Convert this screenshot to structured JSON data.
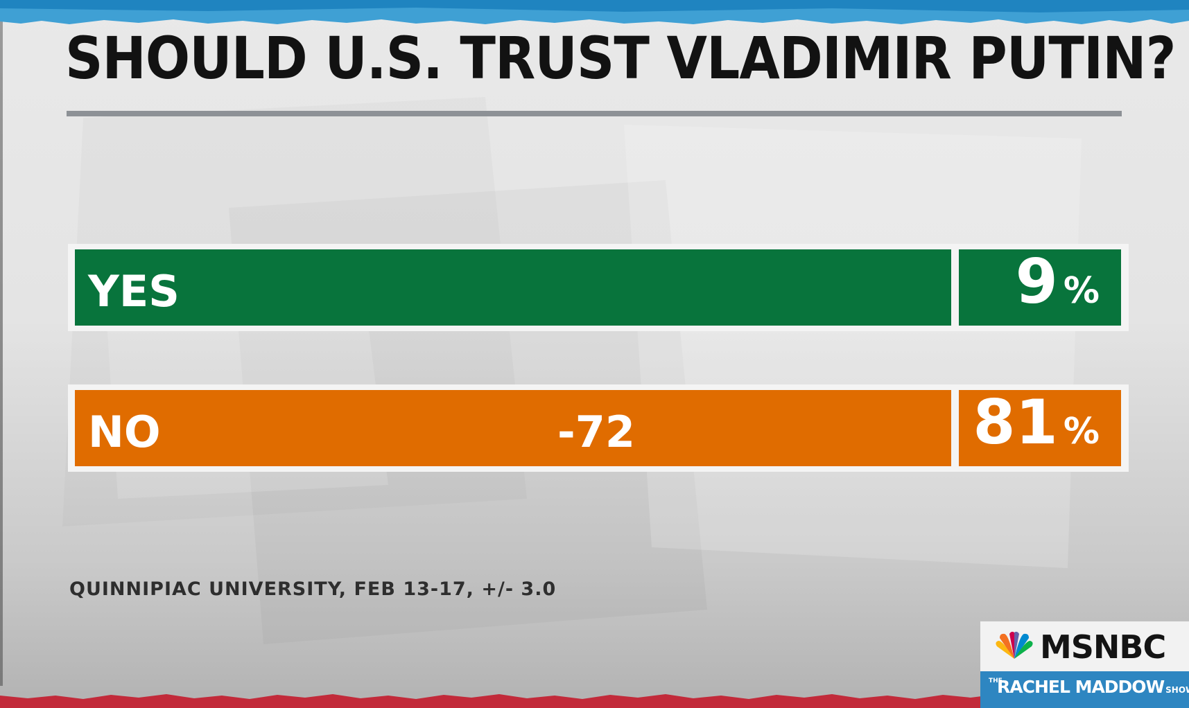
{
  "title": "SHOULD U.S. TRUST VLADIMIR PUTIN?",
  "source": "QUINNIPIAC UNIVERSITY, FEB 13-17, +/- 3.0",
  "logo": {
    "network": "MSNBC",
    "show_the": "THE",
    "show_name": "RACHEL MADDOW",
    "show_suffix": "SHOW"
  },
  "colors": {
    "yes": "#08743c",
    "no": "#e06c00",
    "label_text": "#ffffff",
    "title_text": "#121212",
    "logo_strip": "#2e86c1"
  },
  "chart_data": {
    "type": "bar",
    "orientation": "horizontal",
    "title": "SHOULD U.S. TRUST VLADIMIR PUTIN?",
    "categories": [
      "YES",
      "NO"
    ],
    "values": [
      9,
      81
    ],
    "value_labels": [
      "9",
      "81"
    ],
    "unit": "%",
    "annotation": {
      "category": "NO",
      "text": "-72"
    },
    "grid": false,
    "legend": "none"
  }
}
